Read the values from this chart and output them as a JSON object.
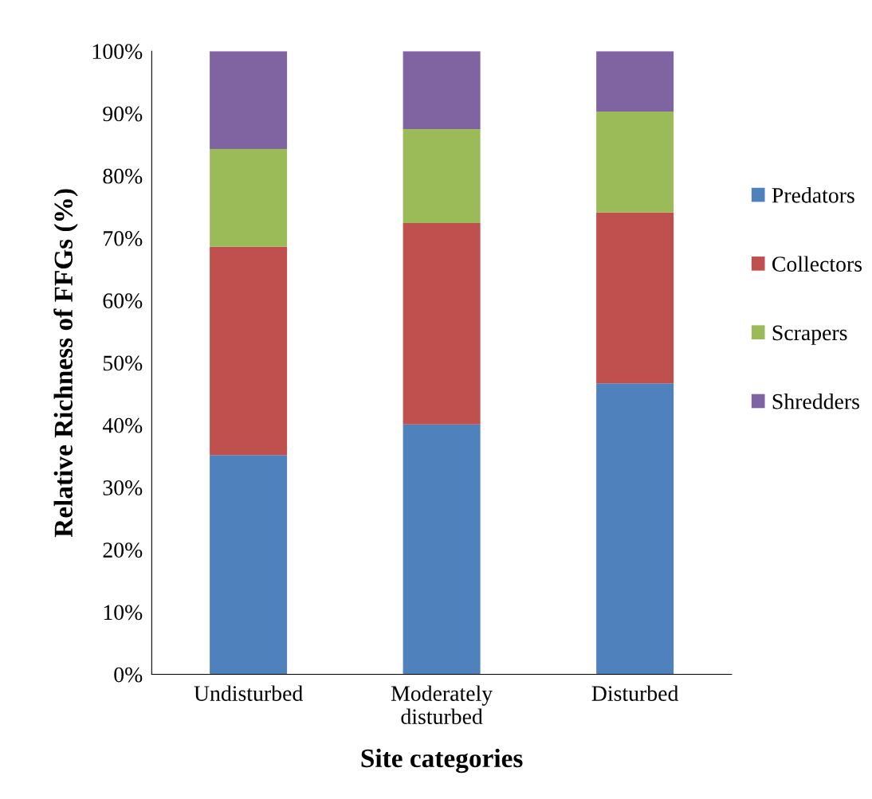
{
  "chart_data": {
    "type": "bar",
    "stacked": true,
    "xlabel": "Site categories",
    "ylabel": "Relative Richness of FFGs (%)",
    "categories": [
      "Undisturbed",
      "Moderately\ndisturbed",
      "Disturbed"
    ],
    "series": [
      {
        "name": "Predators",
        "color": "#4f81bd",
        "values": [
          35.2,
          40.1,
          46.7
        ]
      },
      {
        "name": "Collectors",
        "color": "#c0504d",
        "values": [
          33.4,
          32.3,
          27.4
        ]
      },
      {
        "name": "Scrapers",
        "color": "#9bbb59",
        "values": [
          15.7,
          15.1,
          16.2
        ]
      },
      {
        "name": "Shredders",
        "color": "#8064a2",
        "values": [
          15.7,
          12.5,
          9.7
        ]
      }
    ],
    "ylim": [
      0,
      100
    ],
    "yticks": [
      {
        "value": 0,
        "label": "0%"
      },
      {
        "value": 10,
        "label": "10%"
      },
      {
        "value": 20,
        "label": "20%"
      },
      {
        "value": 30,
        "label": "30%"
      },
      {
        "value": 40,
        "label": "40%"
      },
      {
        "value": 50,
        "label": "50%"
      },
      {
        "value": 60,
        "label": "60%"
      },
      {
        "value": 70,
        "label": "70%"
      },
      {
        "value": 80,
        "label": "80%"
      },
      {
        "value": 90,
        "label": "90%"
      },
      {
        "value": 100,
        "label": "100%"
      }
    ],
    "grid": false,
    "legend": "right"
  }
}
